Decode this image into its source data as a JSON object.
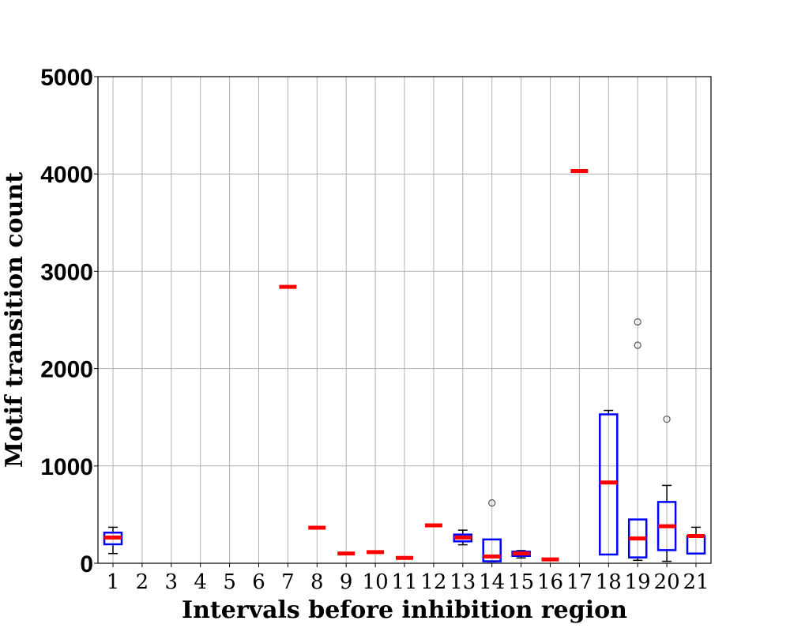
{
  "chart_data": {
    "type": "box",
    "xlabel": "Intervals before inhibition region",
    "ylabel": "Motif transition count",
    "ylim": [
      0,
      5000
    ],
    "yticks": [
      0,
      1000,
      2000,
      3000,
      4000,
      5000
    ],
    "grid": true,
    "categories": [
      "1",
      "2",
      "3",
      "4",
      "5",
      "6",
      "7",
      "8",
      "9",
      "10",
      "11",
      "12",
      "13",
      "14",
      "15",
      "16",
      "17",
      "18",
      "19",
      "20",
      "21"
    ],
    "boxes": [
      {
        "category": "1",
        "whislo": 100,
        "q1": 195,
        "med": 265,
        "q3": 315,
        "whishi": 370,
        "fliers": []
      },
      {
        "category": "2",
        "empty": true
      },
      {
        "category": "3",
        "empty": true
      },
      {
        "category": "4",
        "empty": true
      },
      {
        "category": "5",
        "empty": true
      },
      {
        "category": "6",
        "empty": true
      },
      {
        "category": "7",
        "whislo": 2840,
        "q1": 2840,
        "med": 2840,
        "q3": 2840,
        "whishi": 2840,
        "fliers": []
      },
      {
        "category": "8",
        "whislo": 365,
        "q1": 365,
        "med": 365,
        "q3": 365,
        "whishi": 365,
        "fliers": []
      },
      {
        "category": "9",
        "whislo": 100,
        "q1": 100,
        "med": 100,
        "q3": 100,
        "whishi": 100,
        "fliers": []
      },
      {
        "category": "10",
        "whislo": 115,
        "q1": 115,
        "med": 115,
        "q3": 115,
        "whishi": 115,
        "fliers": []
      },
      {
        "category": "11",
        "whislo": 55,
        "q1": 55,
        "med": 55,
        "q3": 55,
        "whishi": 55,
        "fliers": []
      },
      {
        "category": "12",
        "whislo": 390,
        "q1": 390,
        "med": 390,
        "q3": 390,
        "whishi": 390,
        "fliers": []
      },
      {
        "category": "13",
        "whislo": 190,
        "q1": 225,
        "med": 265,
        "q3": 295,
        "whishi": 340,
        "fliers": []
      },
      {
        "category": "14",
        "whislo": 15,
        "q1": 20,
        "med": 70,
        "q3": 245,
        "whishi": 245,
        "fliers": [
          620
        ]
      },
      {
        "category": "15",
        "whislo": 55,
        "q1": 75,
        "med": 100,
        "q3": 120,
        "whishi": 130,
        "fliers": []
      },
      {
        "category": "16",
        "whislo": 40,
        "q1": 40,
        "med": 40,
        "q3": 40,
        "whishi": 40,
        "fliers": []
      },
      {
        "category": "17",
        "whislo": 4030,
        "q1": 4030,
        "med": 4030,
        "q3": 4030,
        "whishi": 4030,
        "fliers": []
      },
      {
        "category": "18",
        "whislo": 90,
        "q1": 90,
        "med": 830,
        "q3": 1530,
        "whishi": 1570,
        "fliers": []
      },
      {
        "category": "19",
        "whislo": 30,
        "q1": 60,
        "med": 255,
        "q3": 450,
        "whishi": 450,
        "fliers": [
          2240,
          2480
        ]
      },
      {
        "category": "20",
        "whislo": 20,
        "q1": 135,
        "med": 380,
        "q3": 630,
        "whishi": 800,
        "fliers": [
          1480
        ]
      },
      {
        "category": "21",
        "whislo": 100,
        "q1": 100,
        "med": 280,
        "q3": 280,
        "whishi": 370,
        "fliers": []
      }
    ],
    "colors": {
      "box": "#0000ff",
      "median": "#ff0000",
      "whisker": "#000000",
      "flier": "#555555",
      "grid": "#b0b0b0"
    }
  }
}
